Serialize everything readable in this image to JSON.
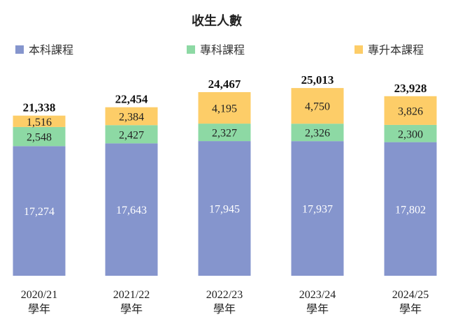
{
  "chart_data": {
    "type": "bar",
    "stacked": true,
    "title": "收生人數",
    "categories": [
      "2020/21",
      "2021/22",
      "2022/23",
      "2023/24",
      "2024/25"
    ],
    "category_suffix": "學年",
    "series": [
      {
        "name": "本科課程",
        "color": "#8595cd",
        "values": [
          17274,
          17643,
          17945,
          17937,
          17802
        ],
        "labels": [
          "17,274",
          "17,643",
          "17,945",
          "17,937",
          "17,802"
        ]
      },
      {
        "name": "專科課程",
        "color": "#8dd9a4",
        "values": [
          2548,
          2427,
          2327,
          2326,
          2300
        ],
        "labels": [
          "2,548",
          "2,427",
          "2,327",
          "2,326",
          "2,300"
        ]
      },
      {
        "name": "專升本課程",
        "color": "#fdcd68",
        "values": [
          1516,
          2384,
          4195,
          4750,
          3826
        ],
        "labels": [
          "1,516",
          "2,384",
          "4,195",
          "4,750",
          "3,826"
        ]
      }
    ],
    "totals": [
      21338,
      22454,
      24467,
      25013,
      23928
    ],
    "total_labels": [
      "21,338",
      "22,454",
      "24,467",
      "25,013",
      "23,928"
    ],
    "legend_position": "top",
    "grid": false
  }
}
